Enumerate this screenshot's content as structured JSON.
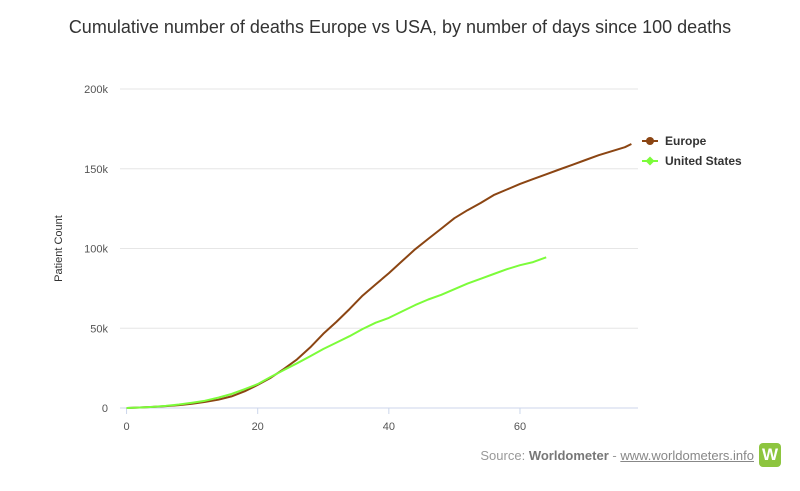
{
  "chart_data": {
    "type": "line",
    "title": "Cumulative number of deaths Europe vs USA, by number of days since 100 deaths",
    "xlabel": "",
    "ylabel": "Patient Count",
    "xlim": [
      -1,
      78
    ],
    "ylim": [
      0,
      200000
    ],
    "x_ticks": [
      "0",
      "20",
      "40",
      "60"
    ],
    "y_ticks": [
      "0",
      "50k",
      "100k",
      "150k",
      "200k"
    ],
    "grid": "horizontal",
    "legend": "right",
    "series": [
      {
        "name": "Europe",
        "color": "#8B4513",
        "x": [
          0,
          2,
          4,
          6,
          8,
          10,
          12,
          14,
          16,
          18,
          20,
          22,
          24,
          26,
          28,
          30,
          32,
          34,
          36,
          38,
          40,
          42,
          44,
          46,
          48,
          50,
          52,
          54,
          56,
          58,
          60,
          62,
          64,
          66,
          68,
          70,
          72,
          74,
          76,
          77
        ],
        "y": [
          0,
          300,
          700,
          1200,
          1800,
          2700,
          3800,
          5200,
          7300,
          10500,
          14500,
          19000,
          24500,
          30500,
          38000,
          46500,
          54000,
          62000,
          70500,
          77500,
          84500,
          92000,
          99500,
          106000,
          112500,
          119000,
          124000,
          128500,
          133500,
          137000,
          140500,
          143500,
          146500,
          149500,
          152500,
          155500,
          158500,
          161000,
          163500,
          165500
        ]
      },
      {
        "name": "United States",
        "color": "#7CFC3A",
        "x": [
          0,
          2,
          4,
          6,
          8,
          10,
          12,
          14,
          16,
          18,
          20,
          22,
          24,
          26,
          28,
          30,
          32,
          34,
          36,
          38,
          40,
          42,
          44,
          46,
          48,
          50,
          52,
          54,
          56,
          58,
          60,
          62,
          64
        ],
        "y": [
          0,
          300,
          700,
          1300,
          2200,
          3300,
          4600,
          6500,
          8800,
          11800,
          15000,
          19500,
          23800,
          28000,
          32500,
          37000,
          41000,
          45000,
          49500,
          53500,
          56500,
          60500,
          64500,
          68000,
          71000,
          74500,
          78000,
          81000,
          84000,
          87000,
          89500,
          91500,
          94500
        ]
      }
    ]
  },
  "source": {
    "prefix": "Source:",
    "brand": "Worldometer",
    "separator": "-",
    "link_text": "www.worldometers.info",
    "logo_letter": "W"
  }
}
